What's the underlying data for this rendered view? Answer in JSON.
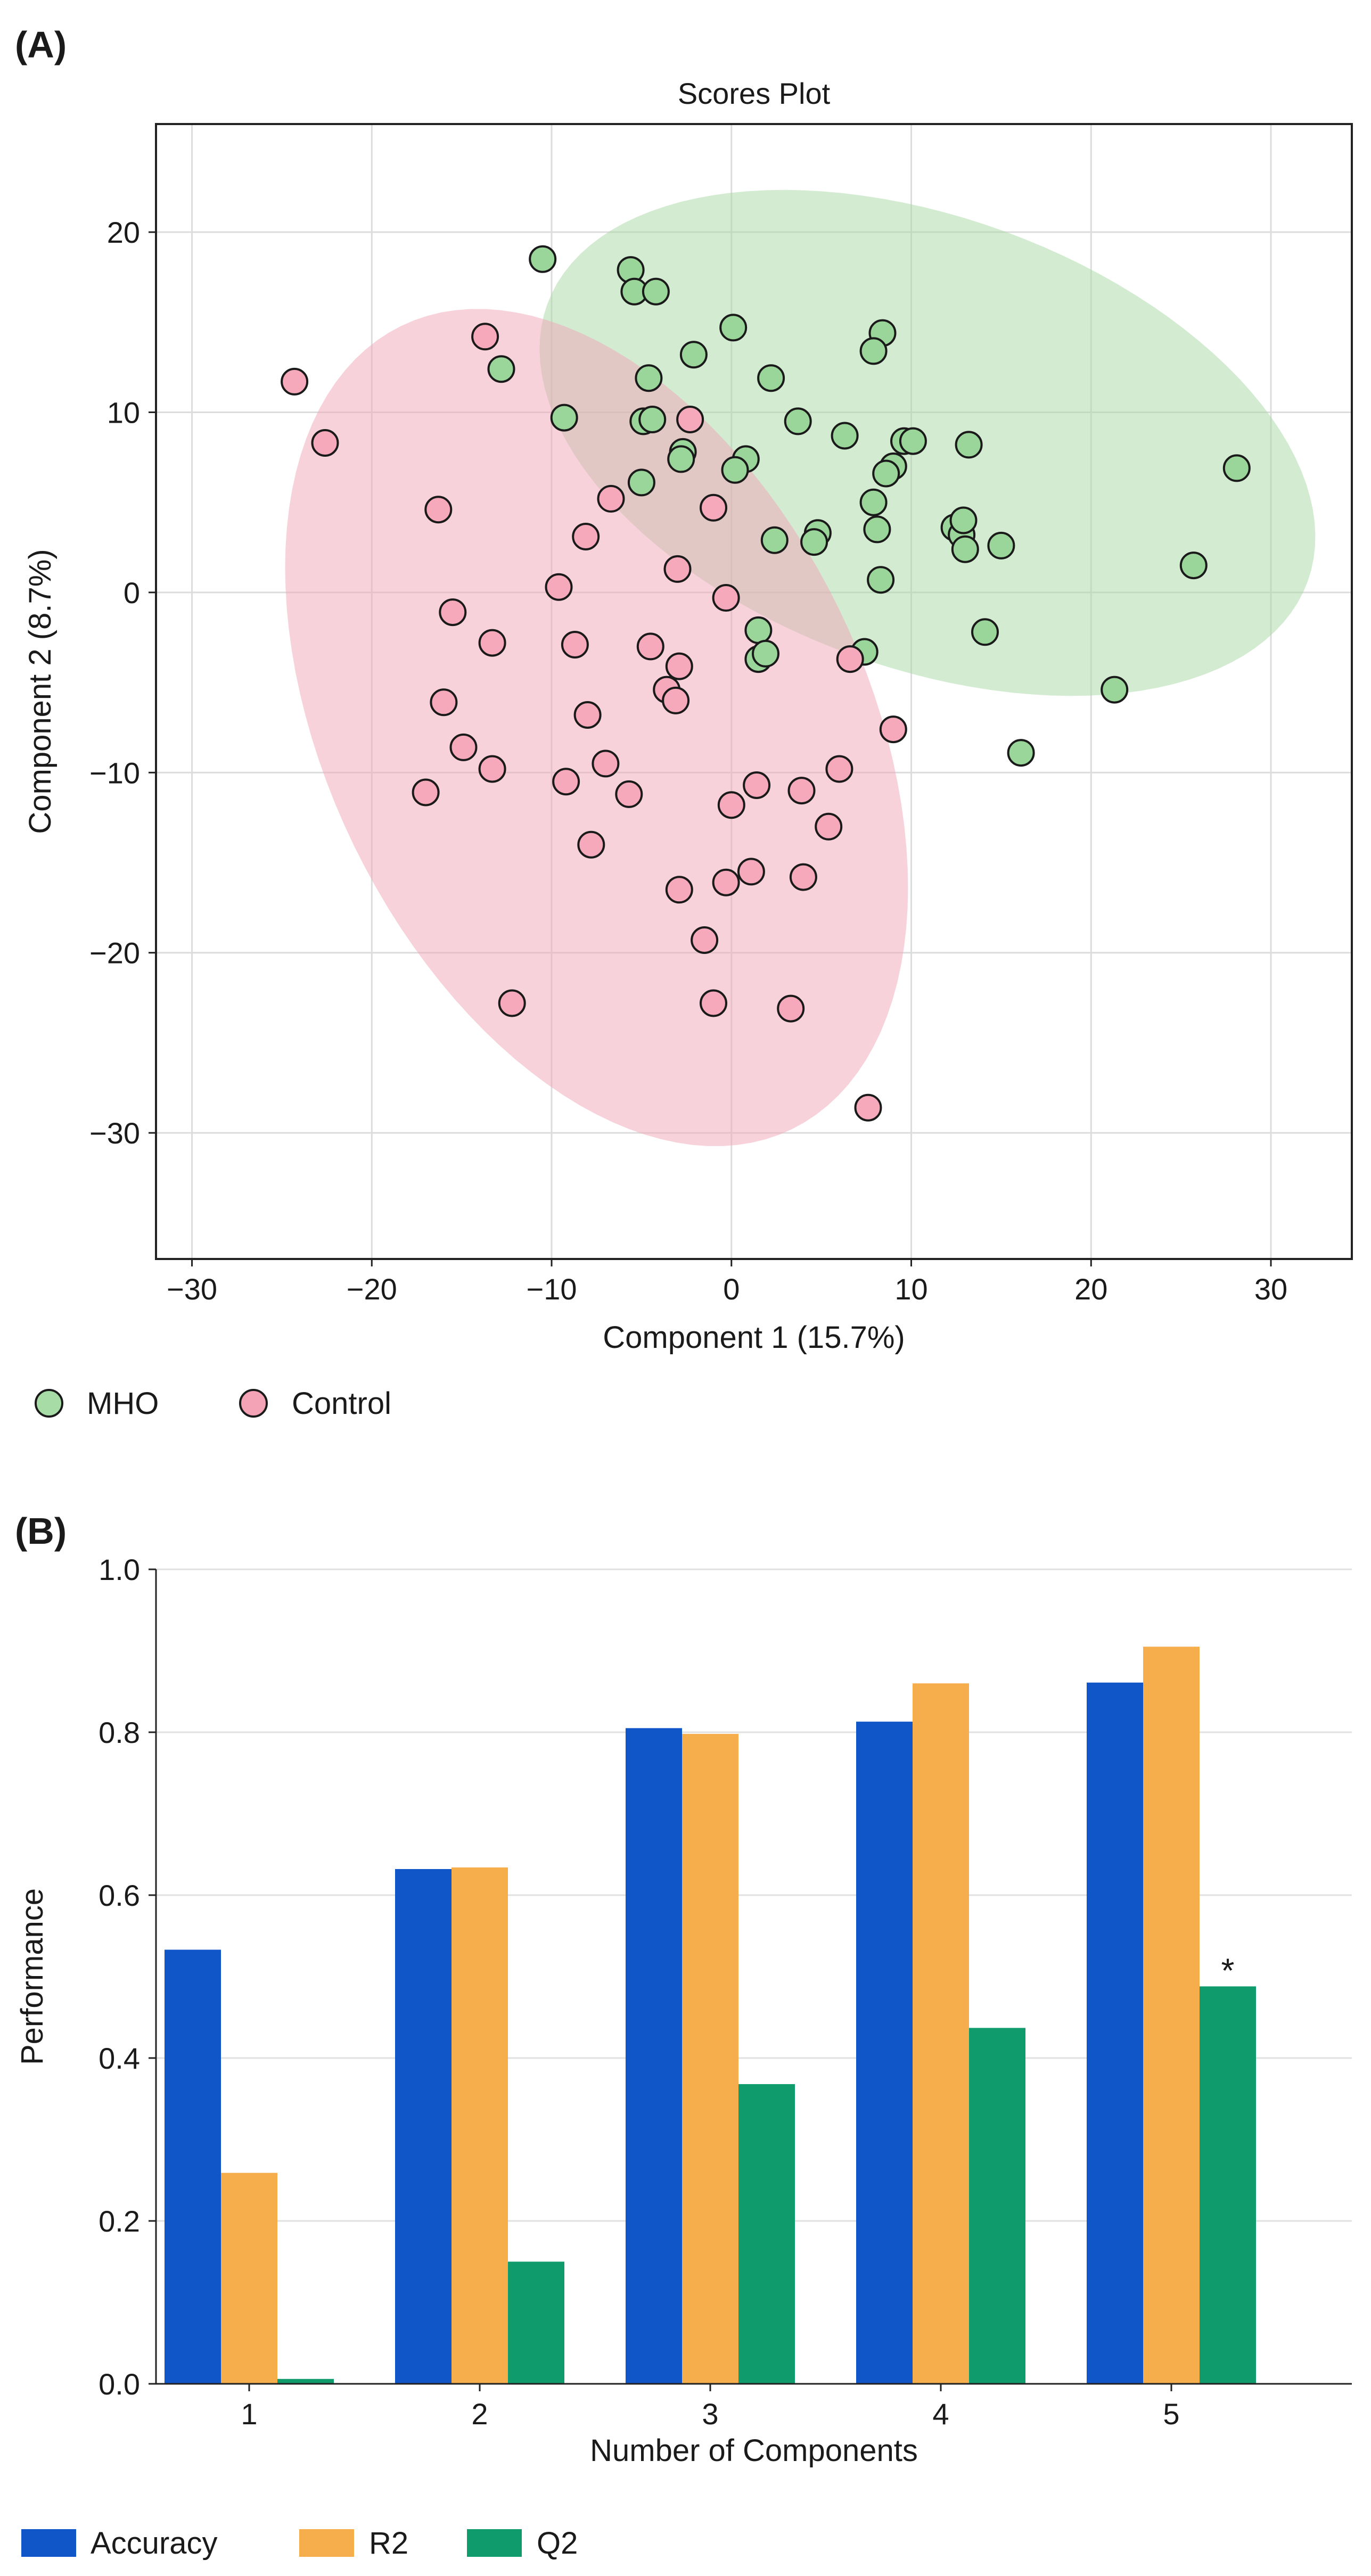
{
  "panel_a": {
    "label": "(A)",
    "legend": [
      {
        "name": "MHO",
        "color": "#a8dca6"
      },
      {
        "name": "Control",
        "color": "#f3a3b5"
      }
    ],
    "chart_data": {
      "type": "scatter",
      "title": "Scores Plot",
      "xlabel": "Component 1 (15.7%)",
      "ylabel": "Component 2 (8.7%)",
      "xlim": [
        -32,
        34.5
      ],
      "ylim": [
        -37,
        26
      ],
      "xticks": [
        -30,
        -20,
        -10,
        0,
        10,
        20,
        30
      ],
      "yticks": [
        -30,
        -20,
        -10,
        0,
        10,
        20
      ],
      "xtick_labels": [
        "−30",
        "−20",
        "−10",
        "0",
        "10",
        "20",
        "30"
      ],
      "ytick_labels": [
        "−30",
        "−20",
        "−10",
        "0",
        "10",
        "20"
      ],
      "grid": true,
      "ellipses": [
        {
          "series": "MHO",
          "center": [
            10.9,
            8.3
          ],
          "radii": [
            22.5,
            12.5
          ],
          "angle_deg": -20,
          "color": "#a5d8a3",
          "opacity": 0.5
        },
        {
          "series": "Control",
          "center": [
            -7.5,
            -7.5
          ],
          "radii": [
            24.8,
            15.0
          ],
          "angle_deg": -64,
          "color": "#f1a5b8",
          "opacity": 0.5
        }
      ],
      "series": [
        {
          "name": "MHO",
          "color": "#9ad69a",
          "points": [
            [
              -10.5,
              18.5
            ],
            [
              -5.6,
              17.9
            ],
            [
              -5.4,
              16.7
            ],
            [
              -4.2,
              16.7
            ],
            [
              0.1,
              14.7
            ],
            [
              8.4,
              14.4
            ],
            [
              -12.8,
              12.4
            ],
            [
              -2.1,
              13.2
            ],
            [
              7.9,
              13.4
            ],
            [
              -4.6,
              11.9
            ],
            [
              2.2,
              11.9
            ],
            [
              -9.3,
              9.7
            ],
            [
              -4.9,
              9.5
            ],
            [
              -4.4,
              9.6
            ],
            [
              3.7,
              9.5
            ],
            [
              6.3,
              8.7
            ],
            [
              9.6,
              8.4
            ],
            [
              10.1,
              8.4
            ],
            [
              13.2,
              8.2
            ],
            [
              -2.7,
              7.8
            ],
            [
              -2.8,
              7.4
            ],
            [
              0.8,
              7.4
            ],
            [
              9.0,
              7.0
            ],
            [
              8.6,
              6.6
            ],
            [
              0.2,
              6.8
            ],
            [
              -5.0,
              6.1
            ],
            [
              7.9,
              5.0
            ],
            [
              28.1,
              6.9
            ],
            [
              12.4,
              3.6
            ],
            [
              12.8,
              3.2
            ],
            [
              13.0,
              2.4
            ],
            [
              12.9,
              4.0
            ],
            [
              15.0,
              2.6
            ],
            [
              8.1,
              3.5
            ],
            [
              2.4,
              2.9
            ],
            [
              4.8,
              3.3
            ],
            [
              4.6,
              2.8
            ],
            [
              8.3,
              0.7
            ],
            [
              25.7,
              1.5
            ],
            [
              1.5,
              -2.1
            ],
            [
              1.5,
              -3.7
            ],
            [
              1.9,
              -3.4
            ],
            [
              14.1,
              -2.2
            ],
            [
              7.4,
              -3.3
            ],
            [
              21.3,
              -5.4
            ],
            [
              16.1,
              -8.9
            ]
          ]
        },
        {
          "name": "Control",
          "color": "#f6a9bb",
          "points": [
            [
              -24.3,
              11.7
            ],
            [
              -22.6,
              8.3
            ],
            [
              -13.7,
              14.2
            ],
            [
              -2.3,
              9.6
            ],
            [
              -16.3,
              4.6
            ],
            [
              -6.7,
              5.2
            ],
            [
              -1.0,
              4.7
            ],
            [
              -8.1,
              3.1
            ],
            [
              -3.0,
              1.3
            ],
            [
              -9.6,
              0.3
            ],
            [
              -0.3,
              -0.3
            ],
            [
              -15.5,
              -1.1
            ],
            [
              -13.3,
              -2.8
            ],
            [
              -8.7,
              -2.9
            ],
            [
              -4.5,
              -3.0
            ],
            [
              -2.9,
              -4.1
            ],
            [
              -3.6,
              -5.4
            ],
            [
              -3.1,
              -6.0
            ],
            [
              6.6,
              -3.7
            ],
            [
              -16.0,
              -6.1
            ],
            [
              -8.0,
              -6.8
            ],
            [
              9.0,
              -7.6
            ],
            [
              -14.9,
              -8.6
            ],
            [
              -13.3,
              -9.8
            ],
            [
              -7.0,
              -9.5
            ],
            [
              6.0,
              -9.8
            ],
            [
              -17.0,
              -11.1
            ],
            [
              -9.2,
              -10.5
            ],
            [
              -5.7,
              -11.2
            ],
            [
              3.9,
              -11.0
            ],
            [
              1.4,
              -10.7
            ],
            [
              0.0,
              -11.8
            ],
            [
              5.4,
              -13.0
            ],
            [
              -7.8,
              -14.0
            ],
            [
              1.1,
              -15.5
            ],
            [
              -0.3,
              -16.1
            ],
            [
              -2.9,
              -16.5
            ],
            [
              4.0,
              -15.8
            ],
            [
              -1.5,
              -19.3
            ],
            [
              -12.2,
              -22.8
            ],
            [
              -1.0,
              -22.8
            ],
            [
              3.3,
              -23.1
            ],
            [
              7.6,
              -28.6
            ]
          ]
        }
      ]
    }
  },
  "panel_b": {
    "label": "(B)",
    "legend": [
      {
        "name": "Accuracy",
        "color": "#1156c9"
      },
      {
        "name": "R2",
        "color": "#f6ad4c"
      },
      {
        "name": "Q2",
        "color": "#0f9b6c"
      }
    ],
    "chart_data": {
      "type": "bar",
      "title": "",
      "xlabel": "Number of Components",
      "ylabel": "Performance",
      "categories": [
        "1",
        "2",
        "3",
        "4",
        "5"
      ],
      "ylim": [
        0,
        1.0
      ],
      "yticks": [
        0.0,
        0.2,
        0.4,
        0.6,
        0.8,
        1.0
      ],
      "ytick_labels": [
        "0.0",
        "0.2",
        "0.4",
        "0.6",
        "0.8",
        "1.0"
      ],
      "grid": true,
      "series": [
        {
          "name": "Accuracy",
          "color": "#1156c9",
          "values": [
            0.533,
            0.632,
            0.805,
            0.813,
            0.861
          ]
        },
        {
          "name": "R2",
          "color": "#f6ad4c",
          "values": [
            0.259,
            0.634,
            0.798,
            0.86,
            0.905
          ]
        },
        {
          "name": "Q2",
          "color": "#0f9b6c",
          "values": [
            0.006,
            0.15,
            0.368,
            0.437,
            0.488
          ]
        }
      ],
      "annotations": [
        {
          "category": "5",
          "series": "Q2",
          "text": "*"
        }
      ]
    }
  }
}
